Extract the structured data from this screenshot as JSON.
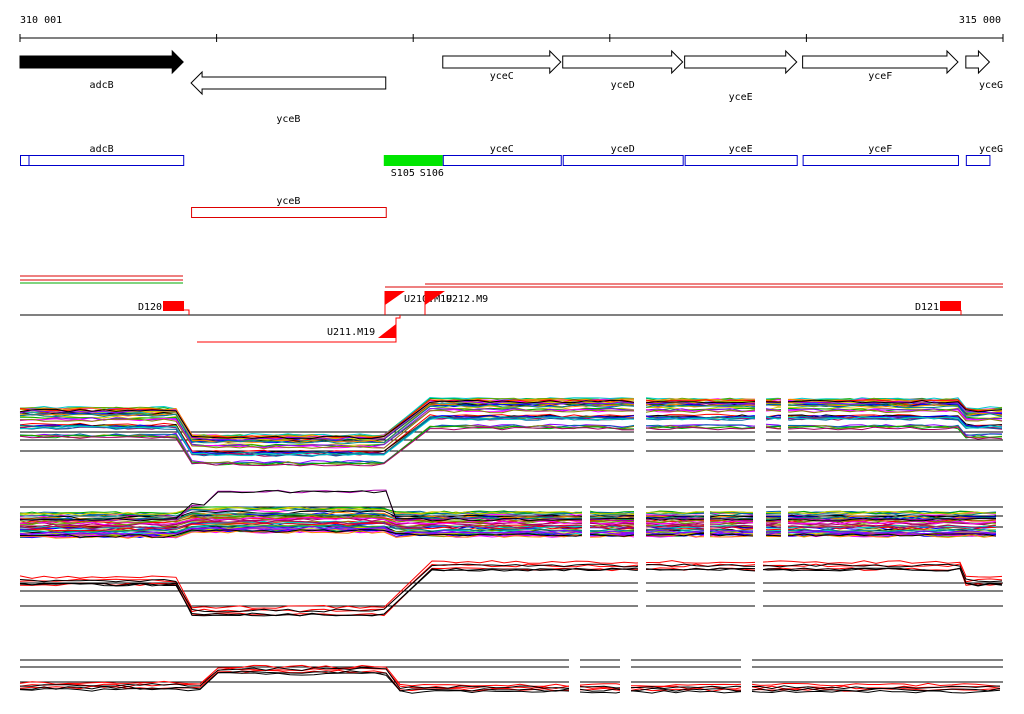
{
  "ruler": {
    "start_label": "310 001",
    "end_label": "315 000",
    "start_bp": 310001,
    "end_bp": 315000
  },
  "genes": [
    {
      "name": "adcB",
      "strand": "+",
      "filled": true,
      "start": 310001,
      "end": 310831
    },
    {
      "name": "yceB",
      "strand": "-",
      "filled": false,
      "start": 310871,
      "end": 311861
    },
    {
      "name": "yceC",
      "strand": "+",
      "filled": false,
      "start": 312151,
      "end": 312751
    },
    {
      "name": "yceD",
      "strand": "+",
      "filled": false,
      "start": 312761,
      "end": 313371
    },
    {
      "name": "yceE",
      "strand": "+",
      "filled": false,
      "start": 313381,
      "end": 313951
    },
    {
      "name": "yceF",
      "strand": "+",
      "filled": false,
      "start": 313981,
      "end": 314771
    },
    {
      "name": "yceG",
      "strand": "+",
      "filled": false,
      "start": 314811,
      "end": 314931
    }
  ],
  "segments_plus": [
    {
      "name": "adcB",
      "start": 310001,
      "end": 310831
    },
    {
      "name": "yceC",
      "start": 312151,
      "end": 312751
    },
    {
      "name": "yceD",
      "start": 312761,
      "end": 313371
    },
    {
      "name": "yceE",
      "start": 313381,
      "end": 313951
    },
    {
      "name": "yceF",
      "start": 313981,
      "end": 314771
    },
    {
      "name": "yceG",
      "start": 314811,
      "end": 314931
    }
  ],
  "segment_minus": {
    "name": "yceB",
    "start": 310871,
    "end": 311861
  },
  "highlight": {
    "start": 311851,
    "end": 312151,
    "label1": "S105",
    "label2": "S106",
    "color": "#00e600"
  },
  "features": {
    "D120": "D120",
    "U210": "U210.M19",
    "U212": "U212.M9",
    "U211": "U211.M19",
    "D121": "D121"
  },
  "colors": {
    "gene_box": "#0000cc",
    "minus_box": "#dd0000",
    "feature": "#ff0000",
    "axis": "#000000"
  }
}
